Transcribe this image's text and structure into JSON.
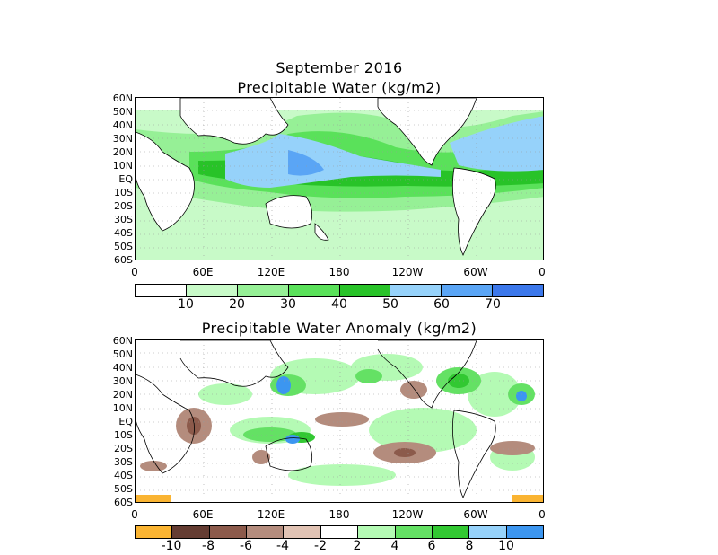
{
  "top": {
    "title_line1": "September 2016",
    "title_line2": "Precipitable Water (kg/m2)",
    "lat_labels": [
      "60N",
      "50N",
      "40N",
      "30N",
      "20N",
      "10N",
      "EQ",
      "10S",
      "20S",
      "30S",
      "40S",
      "50S",
      "60S"
    ],
    "lon_labels": [
      "0",
      "60E",
      "120E",
      "180",
      "120W",
      "60W",
      "0"
    ],
    "colorbar": {
      "colors": [
        "#ffffff",
        "#c8fac8",
        "#96f096",
        "#5ae15a",
        "#28c328",
        "#96d2fa",
        "#5aa5f5",
        "#3c78eb"
      ],
      "labels": [
        "10",
        "20",
        "30",
        "40",
        "50",
        "60",
        "70"
      ]
    }
  },
  "bottom": {
    "title": "Precipitable Water Anomaly (kg/m2)",
    "lat_labels": [
      "60N",
      "50N",
      "40N",
      "30N",
      "20N",
      "10N",
      "EQ",
      "10S",
      "20S",
      "30S",
      "40S",
      "50S",
      "60S"
    ],
    "lon_labels": [
      "0",
      "60E",
      "120E",
      "180",
      "120W",
      "60W",
      "0"
    ],
    "colorbar": {
      "colors": [
        "#fab432",
        "#643c32",
        "#8c5a4b",
        "#b48c7d",
        "#e1c3b4",
        "#ffffff",
        "#b4fab4",
        "#64e164",
        "#32c832",
        "#96d2fa",
        "#3c96f0"
      ],
      "labels": [
        "-10",
        "-8",
        "-6",
        "-4",
        "-2",
        "2",
        "4",
        "6",
        "8",
        "10"
      ]
    }
  }
}
